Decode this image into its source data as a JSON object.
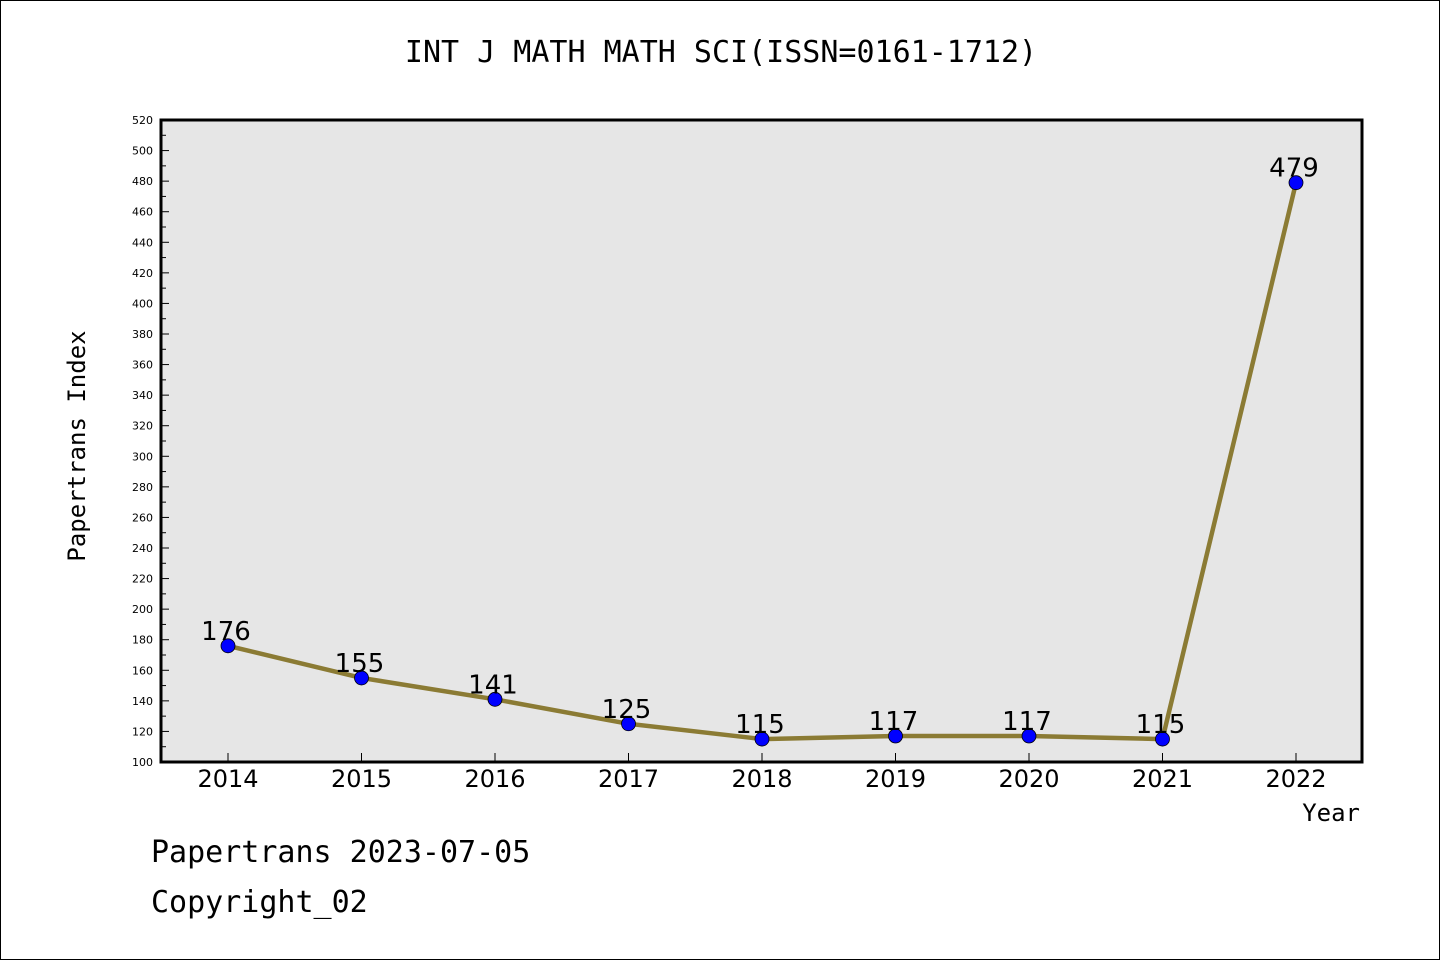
{
  "colors": {
    "background": "#ffffff",
    "plot_background": "#e6e6e6",
    "line": "#8b7b34",
    "marker": "#0000ff",
    "axis": "#000000"
  },
  "footer": {
    "line1": "Papertrans 2023-07-05",
    "line2": "Copyright_02"
  },
  "chart_data": {
    "type": "line",
    "title": "INT J MATH MATH SCI(ISSN=0161-1712)",
    "xlabel": "Year",
    "ylabel": "Papertrans Index",
    "categories": [
      "2014",
      "2015",
      "2016",
      "2017",
      "2018",
      "2019",
      "2020",
      "2021",
      "2022"
    ],
    "series": [
      {
        "values": [
          176,
          155,
          141,
          125,
          115,
          117,
          117,
          115,
          479
        ]
      }
    ],
    "data_labels": [
      "176",
      "155",
      "141",
      "125",
      "115",
      "117",
      "117",
      "115",
      "479"
    ],
    "ylim": [
      100,
      520
    ],
    "yticks": [
      100,
      120,
      140,
      160,
      180,
      200,
      220,
      240,
      260,
      280,
      300,
      320,
      340,
      360,
      380,
      400,
      420,
      440,
      460,
      480,
      500,
      520
    ],
    "grid": false,
    "legend": "none"
  }
}
